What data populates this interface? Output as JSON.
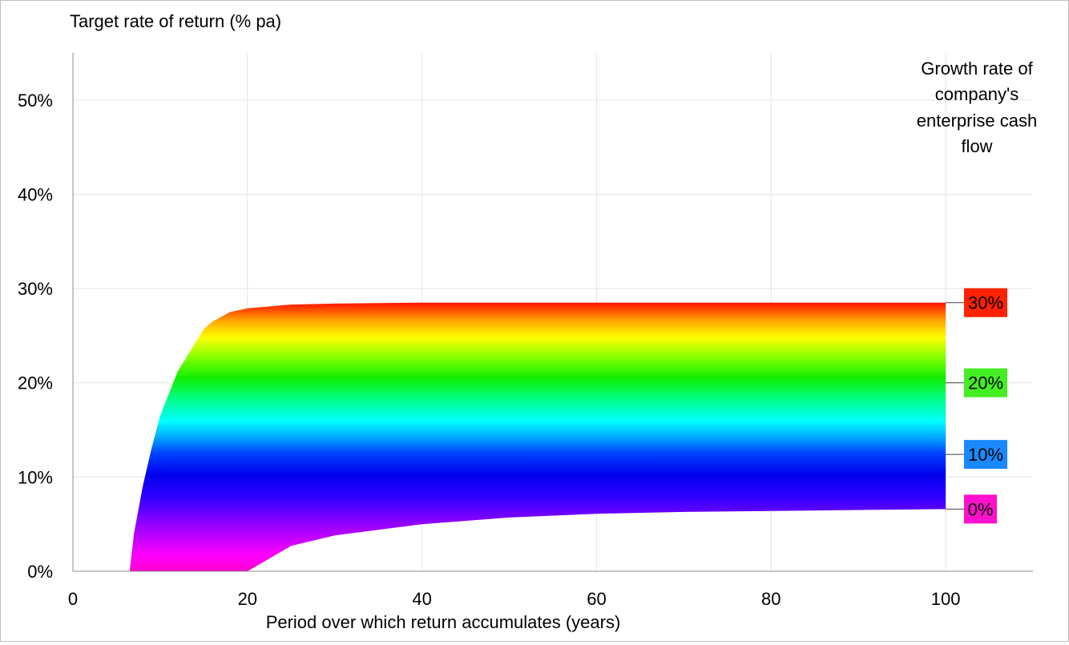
{
  "chart_data": {
    "type": "area",
    "ylabel": "Target rate of return (% pa)",
    "xlabel": "Period over which return accumulates (years)",
    "legend_title": [
      "Growth rate of",
      "company's",
      "enterprise cash",
      "flow"
    ],
    "xlim": [
      0,
      110
    ],
    "ylim": [
      0,
      0.55
    ],
    "x_ticks": [
      0,
      20,
      40,
      60,
      80,
      100
    ],
    "x_tick_labels": [
      "0",
      "20",
      "40",
      "60",
      "80",
      "100"
    ],
    "y_ticks": [
      0,
      0.1,
      0.2,
      0.3,
      0.4,
      0.5
    ],
    "y_tick_labels": [
      "0%",
      "10%",
      "20%",
      "30%",
      "40%",
      "50%"
    ],
    "grid": true,
    "growth_rate_range": [
      0,
      0.3
    ],
    "x": [
      6.5,
      7,
      8,
      9,
      10,
      12,
      14,
      15,
      16,
      18,
      20,
      25,
      30,
      40,
      50,
      60,
      70,
      80,
      90,
      100
    ],
    "series": [
      {
        "name": "0%",
        "color": "#ff00dd",
        "values": [
          null,
          null,
          null,
          null,
          null,
          null,
          null,
          null,
          null,
          null,
          0.0,
          0.027,
          0.038,
          0.05,
          0.057,
          0.061,
          0.063,
          0.064,
          0.065,
          0.066
        ]
      },
      {
        "name": "10%",
        "color": "#0000ff",
        "values": [
          null,
          null,
          null,
          null,
          null,
          null,
          0.045,
          0.063,
          0.076,
          0.091,
          0.1,
          0.107,
          0.11,
          0.112,
          0.113,
          0.113,
          0.113,
          0.113,
          0.113,
          0.113
        ]
      },
      {
        "name": "20%",
        "color": "#00ee00",
        "values": [
          null,
          null,
          null,
          0.02,
          0.06,
          0.115,
          0.15,
          0.163,
          0.172,
          0.186,
          0.193,
          0.199,
          0.2,
          0.2,
          0.2,
          0.2,
          0.2,
          0.2,
          0.2,
          0.2
        ]
      },
      {
        "name": "30%",
        "color": "#ff2200",
        "values": [
          0.0,
          0.04,
          0.09,
          0.13,
          0.165,
          0.212,
          0.242,
          0.257,
          0.265,
          0.275,
          0.279,
          0.283,
          0.284,
          0.285,
          0.285,
          0.285,
          0.285,
          0.285,
          0.285,
          0.285
        ]
      }
    ],
    "labels": [
      {
        "text": "30%",
        "bg": "#ff2200",
        "y": 0.285
      },
      {
        "text": "20%",
        "bg": "#44ee22",
        "y": 0.2
      },
      {
        "text": "10%",
        "bg": "#1a88ff",
        "y": 0.124
      },
      {
        "text": "0%",
        "bg": "#ff10cc",
        "y": 0.066
      }
    ]
  }
}
